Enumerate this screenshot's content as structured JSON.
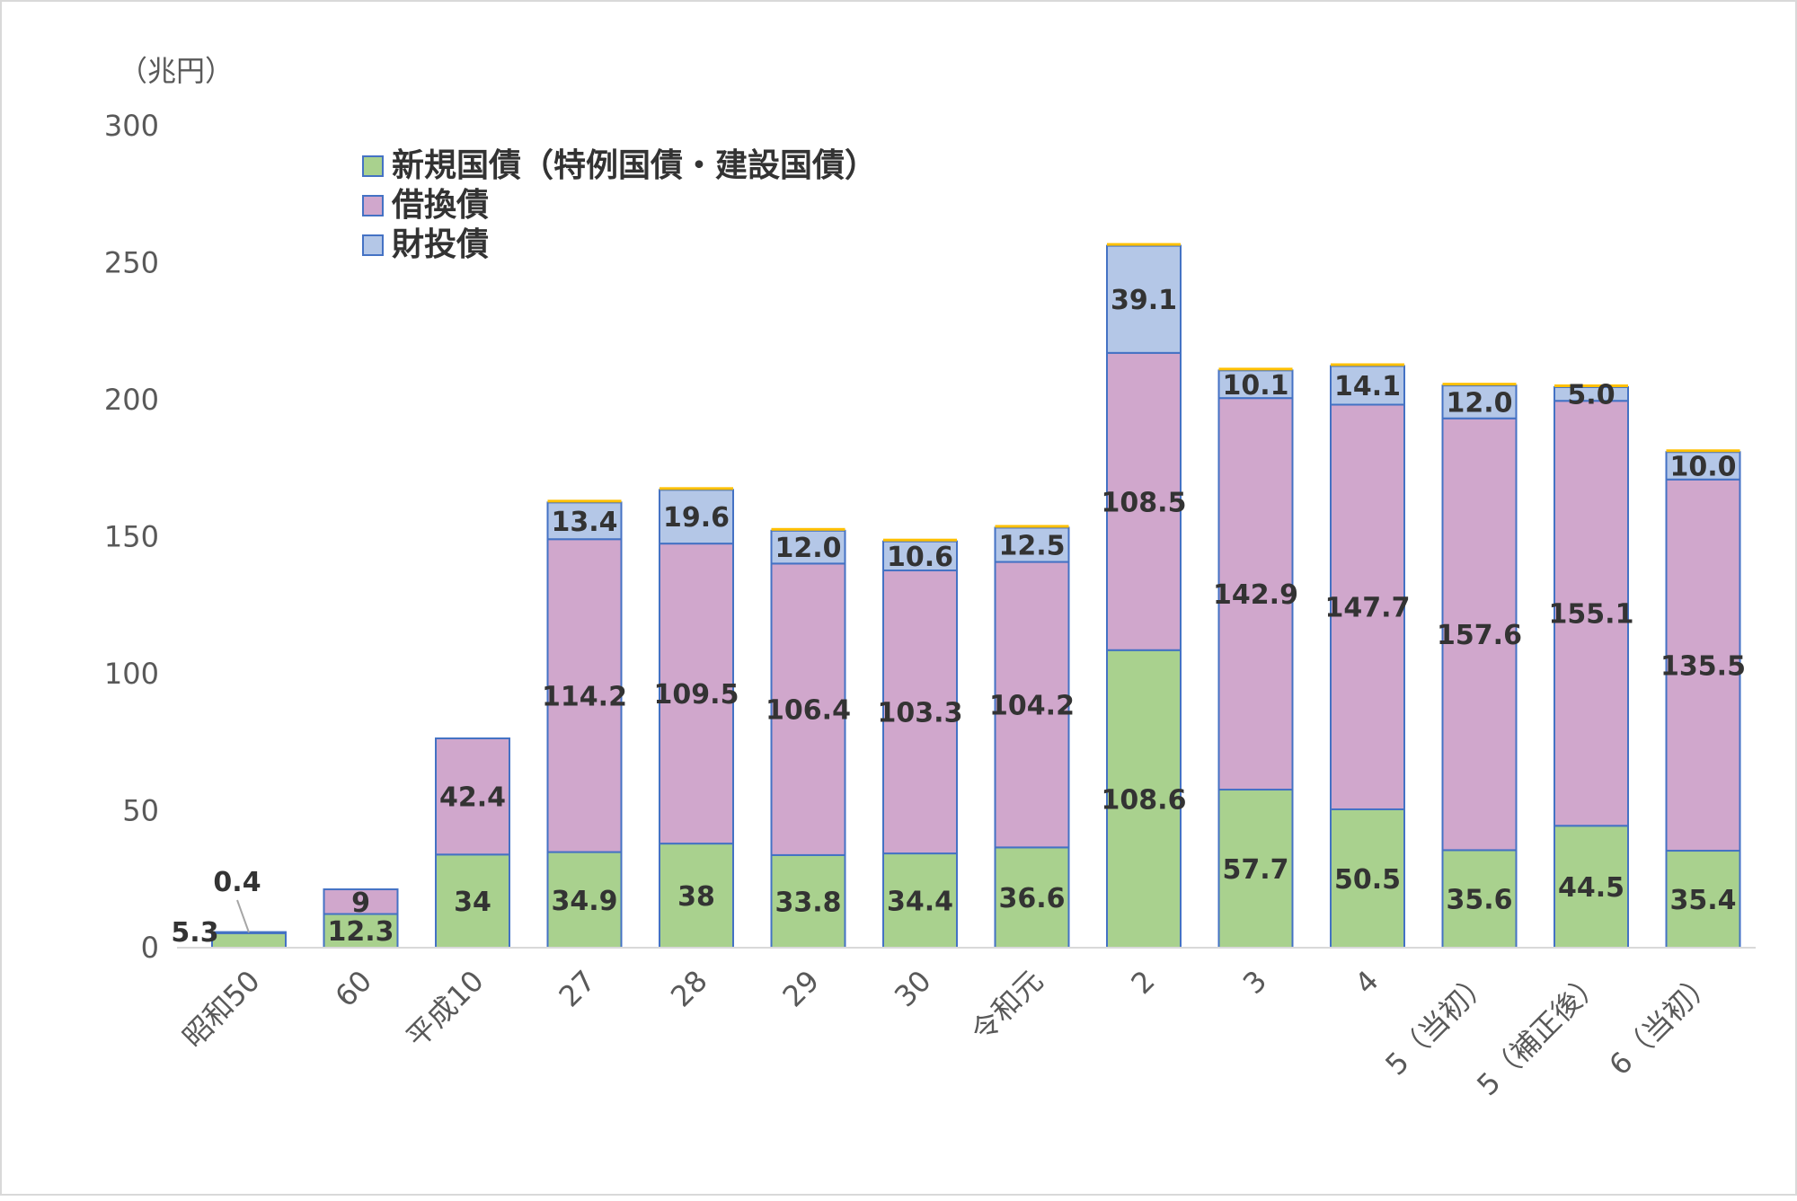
{
  "chart_data": {
    "type": "bar",
    "stacked": true,
    "unit_label": "（兆円）",
    "categories": [
      "昭和50",
      "60",
      "平成10",
      "27",
      "28",
      "29",
      "30",
      "令和元",
      "2",
      "3",
      "4",
      "5（当初）",
      "5（補正後）",
      "6（当初）"
    ],
    "series": [
      {
        "name": "新規国債（特例国債・建設国債）",
        "color": "#a9d18e",
        "values": [
          5.3,
          12.3,
          34,
          34.9,
          38,
          33.8,
          34.4,
          36.6,
          108.6,
          57.7,
          50.5,
          35.6,
          44.5,
          35.4
        ],
        "labels": [
          "5.3",
          "12.3",
          "34",
          "34.9",
          "38",
          "33.8",
          "34.4",
          "36.6",
          "108.6",
          "57.7",
          "50.5",
          "35.6",
          "44.5",
          "35.4"
        ]
      },
      {
        "name": "借換債",
        "color": "#d0a7cc",
        "values": [
          0,
          9,
          42.4,
          114.2,
          109.5,
          106.4,
          103.3,
          104.2,
          108.5,
          142.9,
          147.7,
          157.6,
          155.1,
          135.5
        ],
        "labels": [
          "",
          "9",
          "42.4",
          "114.2",
          "109.5",
          "106.4",
          "103.3",
          "104.2",
          "108.5",
          "142.9",
          "147.7",
          "157.6",
          "155.1",
          "135.5"
        ]
      },
      {
        "name": "財投債",
        "color": "#b4c7e7",
        "values": [
          0.4,
          0,
          0,
          13.4,
          19.6,
          12.0,
          10.6,
          12.5,
          39.1,
          10.1,
          14.1,
          12.0,
          5.0,
          10.0
        ],
        "labels": [
          "0.4",
          "",
          "",
          "13.4",
          "19.6",
          "12.0",
          "10.6",
          "12.5",
          "39.1",
          "10.1",
          "14.1",
          "12.0",
          "5.0",
          "10.0"
        ]
      }
    ],
    "yticks": [
      "0",
      "50",
      "100",
      "150",
      "200",
      "250",
      "300"
    ],
    "ylim": [
      0,
      300
    ],
    "legend_position": "top-left",
    "grid": false,
    "edge_color": "#4472c4",
    "top_cap_color": "#ffc000"
  }
}
